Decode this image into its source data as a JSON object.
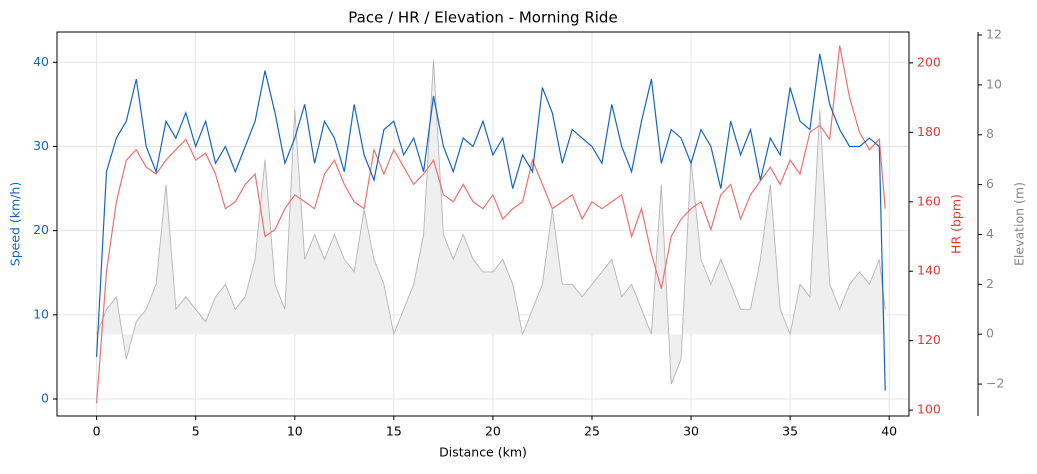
{
  "chart_data": {
    "type": "line",
    "title": "Pace / HR / Elevation - Morning Ride",
    "xlabel": "Distance (km)",
    "ylabel": "Speed (km/h)",
    "y2label": "HR (bpm)",
    "y3label": "Elevation (m)",
    "x": [
      0,
      0.5,
      1,
      1.5,
      2,
      2.5,
      3,
      3.5,
      4,
      4.5,
      5,
      5.5,
      6,
      6.5,
      7,
      7.5,
      8,
      8.5,
      9,
      9.5,
      10,
      10.5,
      11,
      11.5,
      12,
      12.5,
      13,
      13.5,
      14,
      14.5,
      15,
      15.5,
      16,
      16.5,
      17,
      17.5,
      18,
      18.5,
      19,
      19.5,
      20,
      20.5,
      21,
      21.5,
      22,
      22.5,
      23,
      23.5,
      24,
      24.5,
      25,
      25.5,
      26,
      26.5,
      27,
      27.5,
      28,
      28.5,
      29,
      29.5,
      30,
      30.5,
      31,
      31.5,
      32,
      32.5,
      33,
      33.5,
      34,
      34.5,
      35,
      35.5,
      36,
      36.5,
      37,
      37.5,
      38,
      38.5,
      39,
      39.5,
      39.8
    ],
    "series": [
      {
        "name": "Elevation",
        "axis": "y3",
        "color": "#b5b5b5",
        "fill": "#efefef",
        "values": [
          0,
          1,
          1.5,
          -1,
          0.5,
          1,
          2,
          6,
          1,
          1.5,
          1,
          0.5,
          1.5,
          2,
          1,
          1.5,
          3,
          7,
          2,
          1,
          9,
          3,
          4,
          3,
          4,
          3,
          2.5,
          5,
          3,
          2,
          0,
          1,
          2,
          4,
          11,
          4,
          3,
          4,
          3,
          2.5,
          2.5,
          3,
          2,
          0,
          1,
          2,
          5,
          2,
          2,
          1.5,
          2,
          2.5,
          3,
          1.5,
          2,
          1,
          0,
          6,
          -2,
          -1,
          7,
          3,
          2,
          3,
          2,
          1,
          1,
          3,
          6,
          1,
          0,
          2,
          1.5,
          9,
          2,
          1,
          2,
          2.5,
          2,
          3,
          1
        ]
      },
      {
        "name": "HR",
        "axis": "y2",
        "color": "#f07070",
        "values": [
          102,
          140,
          160,
          172,
          175,
          170,
          168,
          172,
          175,
          178,
          172,
          174,
          168,
          158,
          160,
          165,
          168,
          150,
          152,
          158,
          162,
          160,
          158,
          168,
          172,
          165,
          160,
          158,
          175,
          168,
          175,
          170,
          165,
          168,
          172,
          162,
          160,
          165,
          160,
          158,
          162,
          155,
          158,
          160,
          172,
          165,
          158,
          160,
          162,
          155,
          160,
          158,
          160,
          162,
          150,
          158,
          145,
          135,
          150,
          155,
          158,
          160,
          152,
          162,
          165,
          155,
          162,
          166,
          170,
          165,
          172,
          168,
          180,
          182,
          178,
          205,
          190,
          180,
          175,
          178,
          158
        ]
      },
      {
        "name": "Speed",
        "axis": "y",
        "color": "#1565c0",
        "values": [
          5,
          27,
          31,
          33,
          38,
          30,
          27,
          33,
          31,
          34,
          30,
          33,
          28,
          30,
          27,
          30,
          33,
          39,
          34,
          28,
          31,
          35,
          28,
          33,
          31,
          27,
          35,
          29,
          26,
          32,
          33,
          29,
          31,
          27,
          36,
          30,
          27,
          31,
          30,
          33,
          29,
          31,
          25,
          29,
          27,
          37,
          34,
          28,
          32,
          31,
          30,
          28,
          35,
          30,
          27,
          33,
          38,
          28,
          32,
          31,
          28,
          32,
          30,
          25,
          33,
          29,
          32,
          26,
          31,
          29,
          37,
          33,
          32,
          41,
          35,
          32,
          30,
          30,
          31,
          30,
          1
        ]
      }
    ],
    "xlim": [
      -2,
      41
    ],
    "xticks": [
      0,
      5,
      10,
      15,
      20,
      25,
      30,
      35,
      40
    ],
    "ylim": [
      -2.02,
      43.6
    ],
    "yticks": [
      0,
      10,
      20,
      30,
      40
    ],
    "y2lim": [
      98.3,
      208.9
    ],
    "y2ticks": [
      100,
      120,
      140,
      160,
      180,
      200
    ],
    "y3lim": [
      -3.28,
      12.12
    ],
    "y3ticks": [
      {
        "value": -2,
        "label": "−2"
      },
      0,
      2,
      4,
      6,
      8,
      10,
      12
    ],
    "grid": true
  }
}
